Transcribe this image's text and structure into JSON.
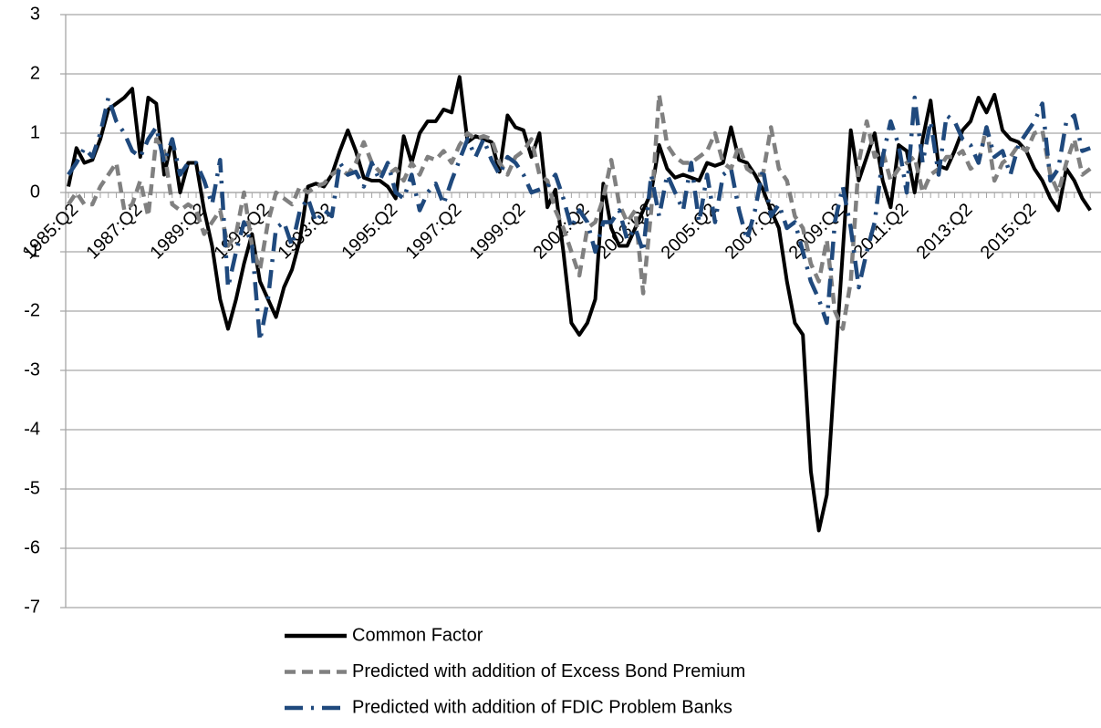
{
  "chart_data": {
    "type": "line",
    "categories": [
      "1985:Q2",
      null,
      null,
      null,
      null,
      null,
      null,
      null,
      "1987:Q2",
      null,
      null,
      null,
      null,
      null,
      null,
      null,
      "1989:Q2",
      null,
      null,
      null,
      null,
      null,
      null,
      null,
      "1991:Q2",
      null,
      null,
      null,
      null,
      null,
      null,
      null,
      "1993:Q2",
      null,
      null,
      null,
      null,
      null,
      null,
      null,
      "1995:Q2",
      null,
      null,
      null,
      null,
      null,
      null,
      null,
      "1997:Q2",
      null,
      null,
      null,
      null,
      null,
      null,
      null,
      "1999:Q2",
      null,
      null,
      null,
      null,
      null,
      null,
      null,
      "2001:Q2",
      null,
      null,
      null,
      null,
      null,
      null,
      null,
      "2003:Q2",
      null,
      null,
      null,
      null,
      null,
      null,
      null,
      "2005:Q2",
      null,
      null,
      null,
      null,
      null,
      null,
      null,
      "2007:Q2",
      null,
      null,
      null,
      null,
      null,
      null,
      null,
      "2009:Q2",
      null,
      null,
      null,
      null,
      null,
      null,
      null,
      "2011:Q2",
      null,
      null,
      null,
      null,
      null,
      null,
      null,
      "2013:Q2",
      null,
      null,
      null,
      null,
      null,
      null,
      null,
      "2015:Q2",
      null,
      null,
      null,
      null,
      null,
      null,
      null,
      null
    ],
    "series": [
      {
        "name": "Common Factor",
        "color": "#000000",
        "line_style": "solid",
        "values": [
          0.1,
          0.75,
          0.5,
          0.55,
          0.9,
          1.4,
          1.5,
          1.6,
          1.75,
          0.6,
          1.6,
          1.5,
          0.3,
          0.9,
          0.0,
          0.5,
          0.5,
          -0.3,
          -0.9,
          -1.8,
          -2.3,
          -1.8,
          -1.2,
          -0.7,
          -1.5,
          -1.8,
          -2.1,
          -1.6,
          -1.3,
          -0.8,
          0.1,
          0.15,
          0.1,
          0.3,
          0.7,
          1.05,
          0.7,
          0.25,
          0.2,
          0.2,
          0.1,
          -0.1,
          0.95,
          0.5,
          1.0,
          1.2,
          1.2,
          1.4,
          1.35,
          1.95,
          0.85,
          0.95,
          0.9,
          0.85,
          0.35,
          1.3,
          1.1,
          1.05,
          0.6,
          1.0,
          -0.25,
          0.05,
          -1.0,
          -2.2,
          -2.4,
          -2.2,
          -1.8,
          0.15,
          -0.6,
          -0.9,
          -0.9,
          -0.6,
          -0.3,
          0.0,
          0.8,
          0.4,
          0.25,
          0.3,
          0.25,
          0.2,
          0.5,
          0.45,
          0.5,
          1.1,
          0.55,
          0.5,
          0.3,
          0.05,
          -0.3,
          -0.6,
          -1.5,
          -2.2,
          -2.4,
          -4.7,
          -5.7,
          -5.1,
          -3.0,
          -1.0,
          1.05,
          0.2,
          0.6,
          1.0,
          0.2,
          -0.25,
          0.8,
          0.7,
          0.0,
          0.9,
          1.55,
          0.45,
          0.4,
          0.7,
          1.05,
          1.2,
          1.6,
          1.35,
          1.65,
          1.05,
          0.9,
          0.85,
          0.7,
          0.4,
          0.2,
          -0.1,
          -0.3,
          0.4,
          0.2,
          -0.1,
          -0.3
        ]
      },
      {
        "name": "Predicted with addition of Excess Bond Premium",
        "color": "#808080",
        "line_style": "dash",
        "values": [
          -0.2,
          0.0,
          -0.2,
          -0.2,
          0.1,
          0.3,
          0.5,
          -0.3,
          -0.2,
          0.2,
          -0.4,
          0.9,
          0.7,
          -0.2,
          -0.3,
          -0.2,
          -0.3,
          -0.7,
          -0.5,
          -0.3,
          -0.9,
          -0.7,
          0.0,
          -0.9,
          -1.3,
          -0.5,
          0.0,
          -0.1,
          -0.2,
          0.1,
          0.0,
          0.1,
          0.15,
          0.3,
          0.4,
          0.3,
          0.5,
          0.85,
          0.5,
          0.35,
          0.3,
          0.4,
          0.2,
          0.5,
          0.3,
          0.6,
          0.55,
          0.7,
          0.5,
          0.8,
          1.0,
          0.9,
          0.95,
          0.9,
          0.5,
          0.3,
          0.6,
          0.7,
          0.9,
          0.3,
          0.2,
          -0.3,
          -0.6,
          -1.0,
          -1.4,
          -0.6,
          -0.5,
          -0.1,
          0.55,
          -0.2,
          -0.5,
          -0.3,
          -1.7,
          -0.3,
          1.65,
          0.8,
          0.6,
          0.5,
          0.5,
          0.6,
          0.7,
          1.0,
          0.5,
          0.4,
          0.8,
          0.4,
          0.3,
          0.3,
          1.1,
          0.4,
          0.2,
          -0.4,
          -0.6,
          -1.2,
          -1.5,
          -0.8,
          -2.0,
          -2.3,
          -1.5,
          0.5,
          1.2,
          0.6,
          0.7,
          0.2,
          0.4,
          0.5,
          0.6,
          0.0,
          0.3,
          0.4,
          0.6,
          0.6,
          0.7,
          0.4,
          0.5,
          1.1,
          0.2,
          0.5,
          0.6,
          0.8,
          0.7,
          1.0,
          1.05,
          0.3,
          0.0,
          0.5,
          0.9,
          0.3,
          0.4
        ]
      },
      {
        "name": "Predicted with addition of FDIC Problem Banks",
        "color": "#1f497d",
        "line_style": "dash-dot",
        "values": [
          0.3,
          0.5,
          0.75,
          0.6,
          1.0,
          1.6,
          1.2,
          1.0,
          0.7,
          0.6,
          0.9,
          1.1,
          0.5,
          0.9,
          0.3,
          0.5,
          0.5,
          0.2,
          -0.2,
          0.55,
          -1.6,
          -1.0,
          -0.5,
          -0.9,
          -2.5,
          -1.8,
          -0.6,
          -0.5,
          -0.9,
          -0.3,
          -0.1,
          -0.5,
          -0.3,
          -0.4,
          0.5,
          0.3,
          0.35,
          0.1,
          0.5,
          0.2,
          0.5,
          0.0,
          -0.1,
          0.3,
          -0.3,
          0.0,
          0.15,
          -0.2,
          0.2,
          0.55,
          0.9,
          0.6,
          0.9,
          0.55,
          0.3,
          0.6,
          0.5,
          0.3,
          0.0,
          0.05,
          0.1,
          0.3,
          -0.1,
          -0.6,
          -0.3,
          -0.5,
          -1.0,
          -0.5,
          -0.5,
          -0.3,
          -0.8,
          -0.6,
          -1.0,
          0.3,
          -0.4,
          0.3,
          0.0,
          -0.3,
          0.5,
          -0.5,
          0.3,
          -0.5,
          0.3,
          0.4,
          -0.3,
          -0.8,
          -0.3,
          0.4,
          -0.4,
          -0.2,
          -0.6,
          -0.5,
          -1.0,
          -1.5,
          -1.8,
          -2.2,
          -0.5,
          0.1,
          -0.6,
          -1.6,
          -1.0,
          -0.5,
          0.6,
          1.2,
          0.8,
          0.0,
          1.6,
          0.5,
          1.2,
          0.3,
          1.3,
          1.2,
          0.9,
          0.8,
          0.5,
          1.1,
          0.6,
          0.7,
          0.3,
          0.8,
          1.0,
          1.2,
          1.5,
          0.2,
          0.4,
          1.2,
          1.3,
          0.7,
          0.75
        ]
      }
    ],
    "ylim": [
      -7,
      3
    ],
    "yticks": [
      -7,
      -6,
      -5,
      -4,
      -3,
      -2,
      -1,
      0,
      1,
      2,
      3
    ],
    "grid": true,
    "legend": "bottom"
  }
}
